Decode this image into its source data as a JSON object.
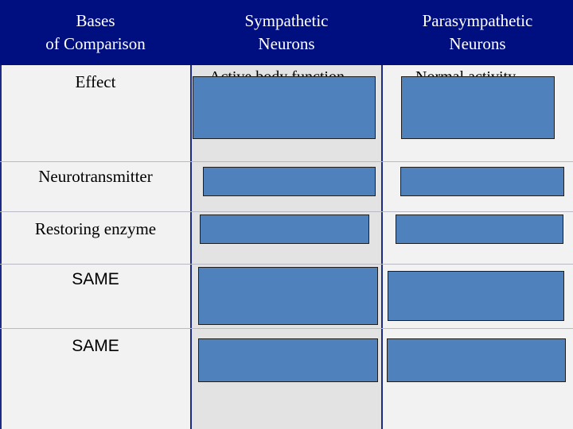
{
  "header": {
    "col1": "Bases of Comparison",
    "col2": "Sympathetic Neurons",
    "col3": "Parasympathetic Neurons"
  },
  "rows": [
    {
      "label": "Effect",
      "sym_peek": "Active body function",
      "para_peek": "Normal activity"
    },
    {
      "label": "Neurotransmitter"
    },
    {
      "label": "Restoring enzyme"
    },
    {
      "label": "SAME"
    },
    {
      "label": "SAME"
    }
  ],
  "colors": {
    "header_bg": "#000f80",
    "col_light": "#f2f2f2",
    "col_mid": "#e3e3e3",
    "cover_fill": "#4f81bd",
    "divider": "#1c2b88"
  }
}
